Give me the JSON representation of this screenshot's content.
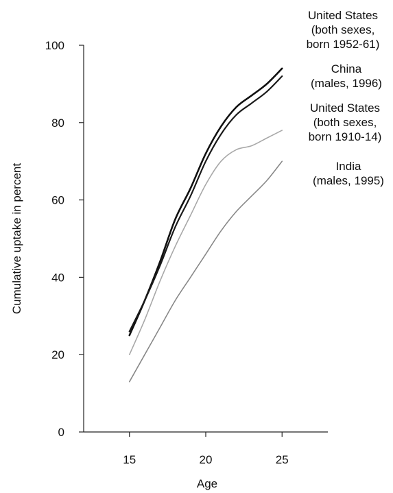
{
  "chart_data": {
    "type": "line",
    "xlabel": "Age",
    "ylabel": "Cumulative uptake in percent",
    "xlim": [
      12,
      28
    ],
    "ylim": [
      0,
      100
    ],
    "x_ticks": [
      15,
      20,
      25
    ],
    "y_ticks": [
      0,
      20,
      40,
      60,
      80,
      100
    ],
    "grid": false,
    "legend_placement": "right, labels beside line ends",
    "series": [
      {
        "id": "us-1952",
        "label_lines": [
          "United States",
          "(both sexes,",
          "born 1952-61)"
        ],
        "color": "#111111",
        "x": [
          15,
          16,
          17,
          18,
          19,
          20,
          21,
          22,
          23,
          24,
          25
        ],
        "y": [
          25,
          34,
          44,
          55,
          63,
          72,
          79,
          84,
          87,
          90,
          94
        ]
      },
      {
        "id": "china-1996",
        "label_lines": [
          "China",
          "(males, 1996)"
        ],
        "color": "#1a1a1a",
        "x": [
          15,
          16,
          17,
          18,
          19,
          20,
          21,
          22,
          23,
          24,
          25
        ],
        "y": [
          26,
          34,
          43,
          53,
          61,
          70,
          77,
          82,
          85,
          88,
          92
        ]
      },
      {
        "id": "us-1910",
        "label_lines": [
          "United States",
          "(both sexes,",
          "born 1910-14)"
        ],
        "color": "#a8a8a8",
        "x": [
          15,
          16,
          17,
          18,
          19,
          20,
          21,
          22,
          23,
          24,
          25
        ],
        "y": [
          20,
          29,
          39,
          48,
          56,
          64,
          70,
          73,
          74,
          76,
          78
        ]
      },
      {
        "id": "india-1995",
        "label_lines": [
          "India",
          "(males, 1995)"
        ],
        "color": "#888888",
        "x": [
          15,
          16,
          17,
          18,
          19,
          20,
          21,
          22,
          23,
          24,
          25
        ],
        "y": [
          13,
          20,
          27,
          34,
          40,
          46,
          52,
          57,
          61,
          65,
          70
        ]
      }
    ]
  }
}
